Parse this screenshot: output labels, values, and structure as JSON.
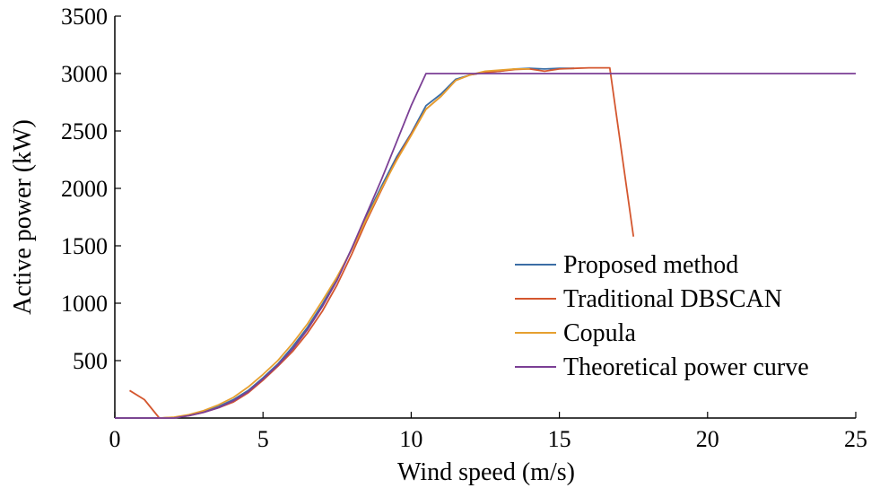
{
  "chart_data": {
    "type": "line",
    "title": "",
    "xlabel": "Wind speed (m/s)",
    "ylabel": "Active power (kW)",
    "xlim": [
      0,
      25
    ],
    "ylim": [
      0,
      3500
    ],
    "xticks": [
      0,
      5,
      10,
      15,
      20,
      25
    ],
    "yticks": [
      500,
      1000,
      1500,
      2000,
      2500,
      3000,
      3500
    ],
    "grid": false,
    "legend_position": "bottom-right",
    "series": [
      {
        "name": "Proposed method",
        "color": "#3b6ea5",
        "x": [
          1.5,
          2,
          2.5,
          3,
          3.5,
          4,
          4.5,
          5,
          5.5,
          6,
          6.5,
          7,
          7.5,
          8,
          8.5,
          9,
          9.5,
          10,
          10.5,
          11,
          11.5,
          12,
          12.5,
          13,
          13.5,
          14,
          14.5,
          15,
          15.5
        ],
        "y": [
          0,
          5,
          25,
          55,
          100,
          160,
          240,
          350,
          470,
          620,
          790,
          990,
          1210,
          1480,
          1760,
          2020,
          2270,
          2480,
          2720,
          2820,
          2950,
          2990,
          3010,
          3020,
          3040,
          3045,
          3040,
          3045,
          3045
        ]
      },
      {
        "name": "Traditional DBSCAN",
        "color": "#d4572f",
        "x": [
          0.5,
          1,
          1.5,
          2,
          2.5,
          3,
          3.5,
          4,
          4.5,
          5,
          5.5,
          6,
          6.5,
          7,
          7.5,
          8,
          8.5,
          9,
          9.5,
          10,
          10.5,
          11,
          11.5,
          12,
          12.5,
          13,
          13.5,
          14,
          14.5,
          15,
          15.5,
          16,
          16.5,
          16.7,
          17.5
        ],
        "y": [
          240,
          160,
          0,
          5,
          20,
          50,
          90,
          140,
          220,
          330,
          450,
          580,
          740,
          930,
          1160,
          1430,
          1720,
          1990,
          2250,
          2470,
          2690,
          2800,
          2940,
          2990,
          3010,
          3020,
          3035,
          3040,
          3020,
          3040,
          3045,
          3050,
          3050,
          3050,
          1580
        ]
      },
      {
        "name": "Copula",
        "color": "#e6a030",
        "x": [
          1.5,
          2,
          2.5,
          3,
          3.5,
          4,
          4.5,
          5,
          5.5,
          6,
          6.5,
          7,
          7.5,
          8,
          8.5,
          9,
          9.5,
          10,
          10.5,
          11,
          11.5,
          12,
          12.5,
          13,
          13.5,
          14
        ],
        "y": [
          0,
          8,
          30,
          65,
          115,
          180,
          270,
          380,
          500,
          650,
          820,
          1020,
          1230,
          1470,
          1740,
          2000,
          2240,
          2460,
          2690,
          2800,
          2940,
          2990,
          3020,
          3030,
          3040,
          3040
        ]
      },
      {
        "name": "Theoretical power curve",
        "color": "#7b3f95",
        "x": [
          0,
          2,
          2.5,
          3,
          3.5,
          4,
          4.5,
          5,
          5.5,
          6,
          6.5,
          7,
          7.5,
          8,
          8.5,
          9,
          9.5,
          10,
          10.5,
          25
        ],
        "y": [
          0,
          0,
          20,
          50,
          90,
          150,
          230,
          340,
          460,
          600,
          770,
          970,
          1200,
          1480,
          1780,
          2080,
          2400,
          2720,
          3000,
          3000
        ]
      }
    ]
  }
}
